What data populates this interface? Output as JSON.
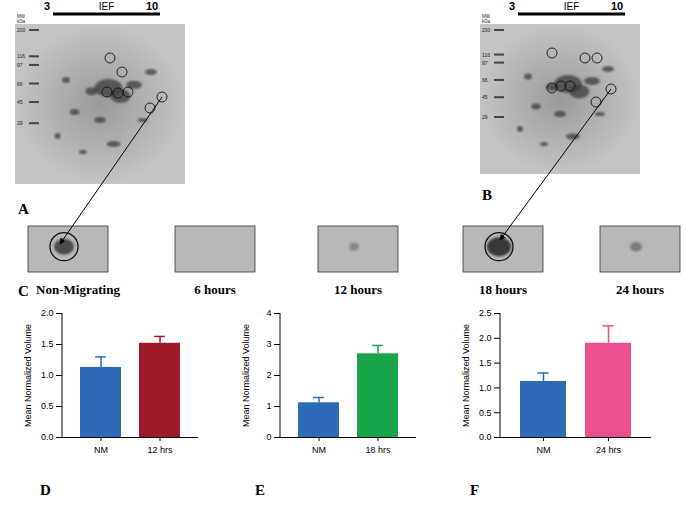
{
  "gels": [
    {
      "panel": "A",
      "axis_label": "IEF",
      "range": [
        3,
        10
      ],
      "mw_label": "MW kDa",
      "mw_markers": [
        200,
        116,
        97,
        66,
        45,
        29
      ]
    },
    {
      "panel": "B",
      "axis_label": "IEF",
      "range": [
        3,
        10
      ],
      "mw_label": "MW kDa",
      "mw_markers": [
        200,
        116,
        97,
        66,
        45,
        29
      ]
    }
  ],
  "spot_panel": {
    "panel": "C",
    "labels": [
      "Non-Migrating",
      "6 hours",
      "12 hours",
      "18 hours",
      "24 hours"
    ]
  },
  "chart_data": [
    {
      "type": "bar",
      "panel": "D",
      "y_label": "Mean Normalized Volume",
      "categories": [
        "NM",
        "12 hrs"
      ],
      "values": [
        1.13,
        1.52
      ],
      "errors": [
        0.17,
        0.11
      ],
      "colors": [
        "#2e6bb7",
        "#a0192b"
      ],
      "ylim": [
        0,
        2
      ],
      "yticks": [
        {
          "value": 0,
          "label": "0.0"
        },
        {
          "value": 0.5,
          "label": "0.5"
        },
        {
          "value": 1,
          "label": "1.0"
        },
        {
          "value": 1.5,
          "label": "1.5"
        },
        {
          "value": 2,
          "label": "2.0"
        }
      ]
    },
    {
      "type": "bar",
      "panel": "E",
      "y_label": "Mean Normalized Volume",
      "categories": [
        "NM",
        "18 hrs"
      ],
      "values": [
        1.12,
        2.7
      ],
      "errors": [
        0.17,
        0.27
      ],
      "colors": [
        "#2e6bb7",
        "#19a64a"
      ],
      "ylim": [
        0,
        4
      ],
      "yticks": [
        0,
        1,
        2,
        3,
        4
      ]
    },
    {
      "type": "bar",
      "panel": "F",
      "y_label": "Mean Normalized Volume",
      "categories": [
        "NM",
        "24 hrs"
      ],
      "values": [
        1.13,
        1.9
      ],
      "errors": [
        0.17,
        0.35
      ],
      "colors": [
        "#2e6bb7",
        "#ea4f8f"
      ],
      "ylim": [
        0,
        2.5
      ],
      "yticks": [
        {
          "value": 0,
          "label": "0.0"
        },
        {
          "value": 0.5,
          "label": "0.5"
        },
        {
          "value": 1,
          "label": "1.0"
        },
        {
          "value": 1.5,
          "label": "1.5"
        },
        {
          "value": 2,
          "label": "2.0"
        },
        {
          "value": 2.5,
          "label": "2.5"
        }
      ]
    }
  ]
}
